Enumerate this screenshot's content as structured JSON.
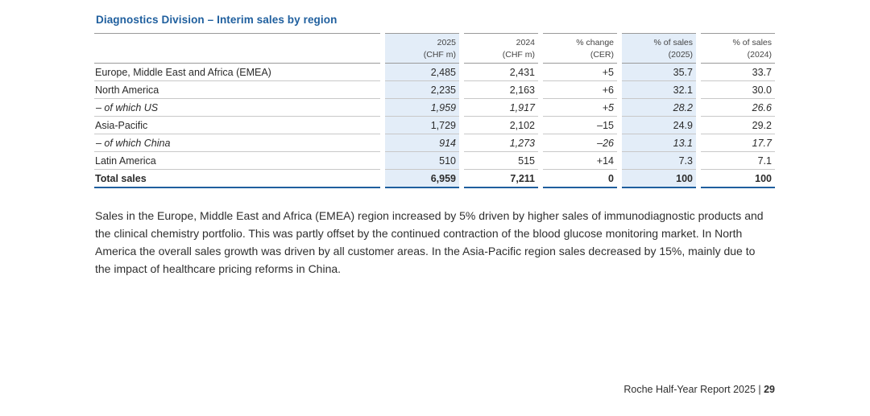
{
  "title": "Diagnostics Division – Interim sales by region",
  "table": {
    "headers": [
      {
        "line1": "2025",
        "line2": "(CHF m)"
      },
      {
        "line1": "2024",
        "line2": "(CHF m)"
      },
      {
        "line1": "% change",
        "line2": "(CER)"
      },
      {
        "line1": "% of sales",
        "line2": "(2025)"
      },
      {
        "line1": "% of sales",
        "line2": "(2024)"
      }
    ],
    "rows": [
      {
        "region": "Europe, Middle East and Africa (EMEA)",
        "v2025": "2,485",
        "v2024": "2,431",
        "change": "+5",
        "pct2025": "35.7",
        "pct2024": "33.7"
      },
      {
        "region": "North America",
        "v2025": "2,235",
        "v2024": "2,163",
        "change": "+6",
        "pct2025": "32.1",
        "pct2024": "30.0"
      },
      {
        "region": "– of which US",
        "v2025": "1,959",
        "v2024": "1,917",
        "change": "+5",
        "pct2025": "28.2",
        "pct2024": "26.6"
      },
      {
        "region": "Asia-Pacific",
        "v2025": "1,729",
        "v2024": "2,102",
        "change": "–15",
        "pct2025": "24.9",
        "pct2024": "29.2"
      },
      {
        "region": "– of which China",
        "v2025": "914",
        "v2024": "1,273",
        "change": "–26",
        "pct2025": "13.1",
        "pct2024": "17.7"
      },
      {
        "region": "Latin America",
        "v2025": "510",
        "v2024": "515",
        "change": "+14",
        "pct2025": "7.3",
        "pct2024": "7.1"
      }
    ],
    "total": {
      "region": "Total sales",
      "v2025": "6,959",
      "v2024": "7,211",
      "change": "0",
      "pct2025": "100",
      "pct2024": "100"
    }
  },
  "paragraph": "Sales in the Europe, Middle East and Africa (EMEA) region increased by 5% driven by higher sales of immunodiagnostic products and the clinical chemistry portfolio. This was partly offset by the continued contraction of the blood glucose monitoring market. In North America the overall sales growth was driven by all customer areas. In the Asia-Pacific region sales decreased by 15%, mainly due to the impact of healthcare pricing reforms in China.",
  "footer": {
    "report": "Roche Half-Year Report 2025 | ",
    "page": "29"
  },
  "colors": {
    "title": "#1f5f9e",
    "highlight": "#e3edf8"
  }
}
